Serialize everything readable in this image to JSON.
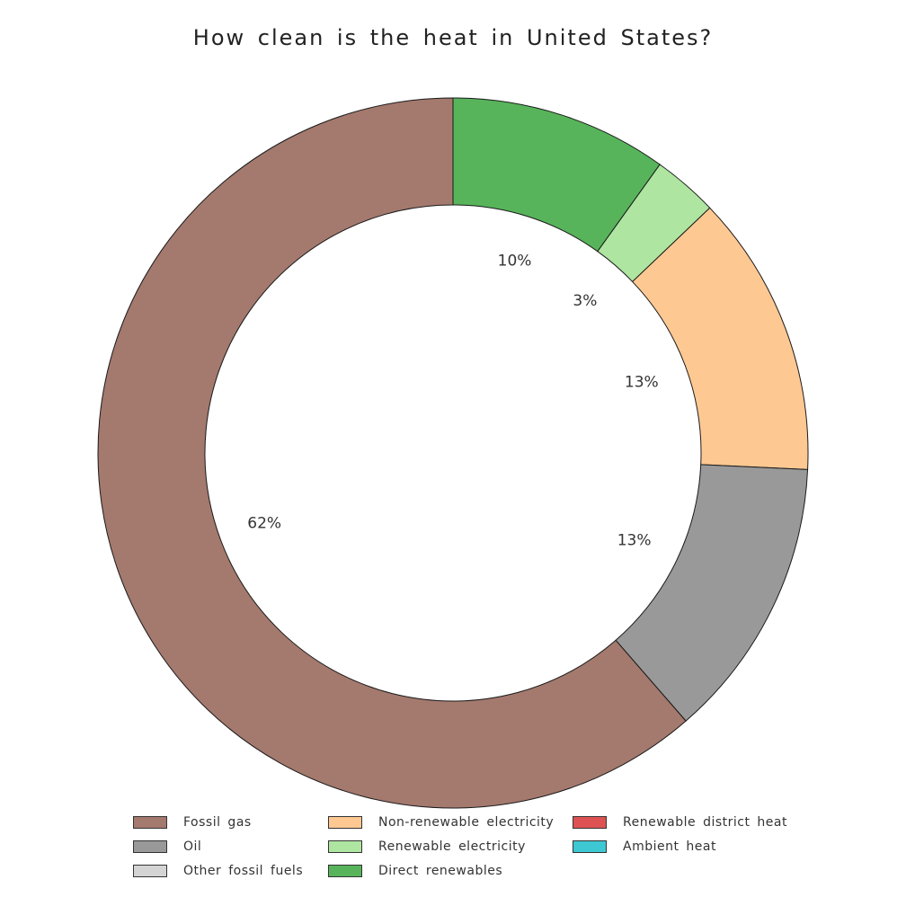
{
  "chart_data": {
    "type": "pie",
    "title": "How clean is the heat in United States?",
    "slices": [
      {
        "label": "Direct renewables",
        "value": 10,
        "display": "10%",
        "color": "#57b45a"
      },
      {
        "label": "Renewable electricity",
        "value": 3,
        "display": "3%",
        "color": "#aee5a1"
      },
      {
        "label": "Non-renewable electricity",
        "value": 13,
        "display": "13%",
        "color": "#fec892"
      },
      {
        "label": "Oil",
        "value": 13,
        "display": "13%",
        "color": "#999999"
      },
      {
        "label": "Fossil gas",
        "value": 62,
        "display": "62%",
        "color": "#a4796e"
      }
    ],
    "legend": {
      "placement": "bottom",
      "entries": [
        {
          "label": "Fossil gas",
          "color": "#a4796e"
        },
        {
          "label": "Oil",
          "color": "#999999"
        },
        {
          "label": "Other fossil fuels",
          "color": "#d4d4d4"
        },
        {
          "label": "Non-renewable electricity",
          "color": "#fec892"
        },
        {
          "label": "Renewable electricity",
          "color": "#aee5a1"
        },
        {
          "label": "Direct renewables",
          "color": "#57b45a"
        },
        {
          "label": "Renewable district heat",
          "color": "#de5253"
        },
        {
          "label": "Ambient heat",
          "color": "#3ec8d4"
        }
      ]
    }
  }
}
